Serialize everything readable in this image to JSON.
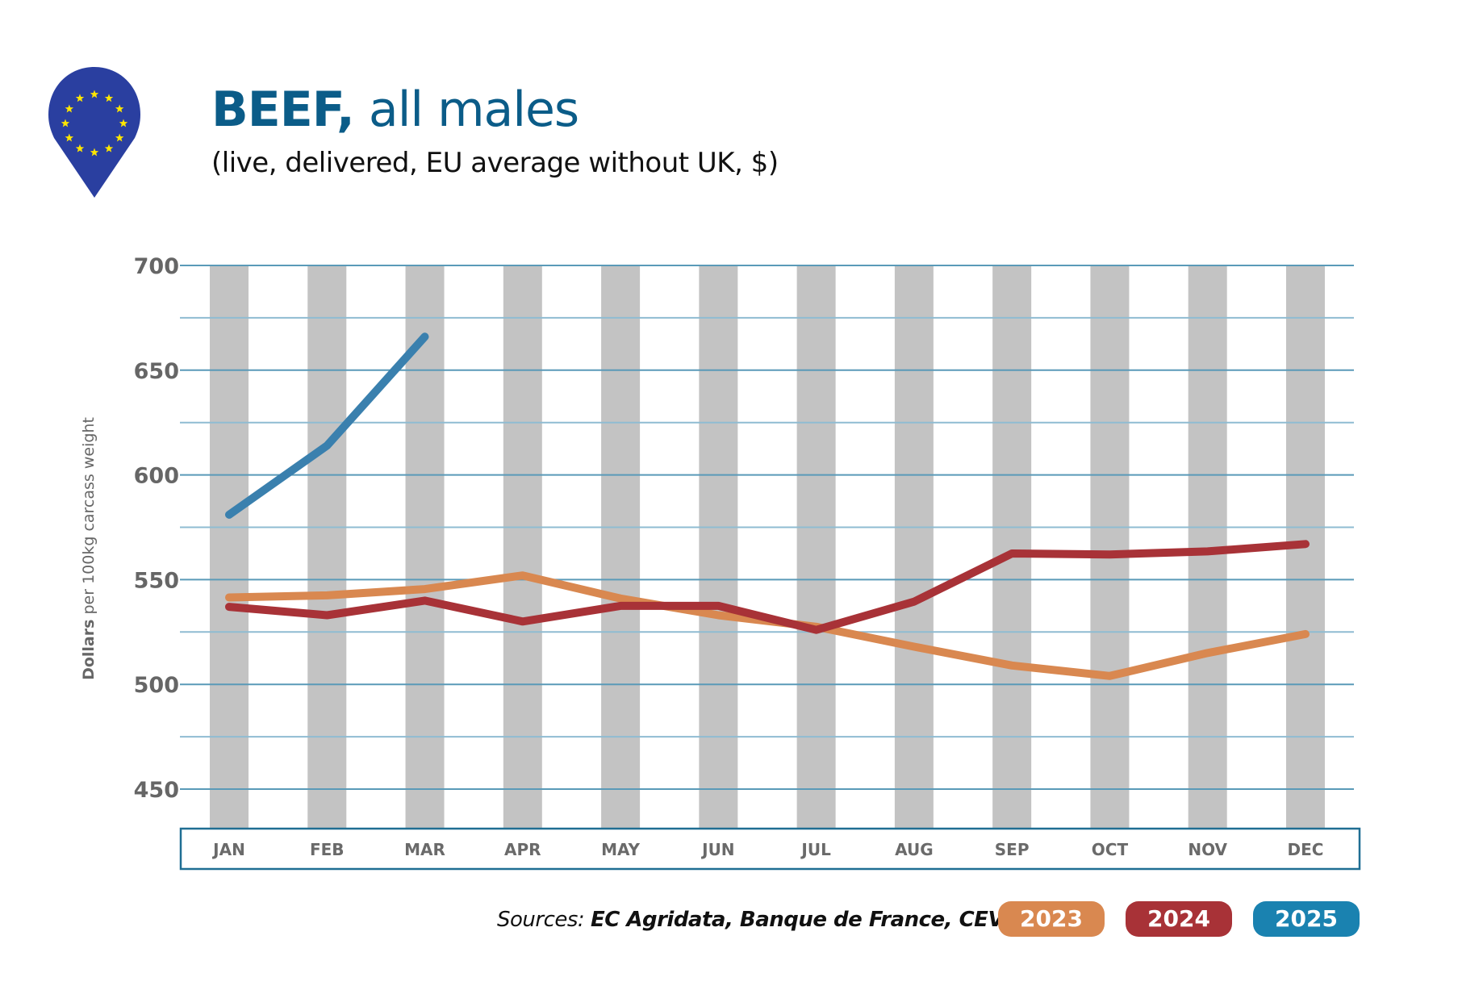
{
  "header": {
    "icon": "eu-flag-map-pin-icon",
    "title_bold": "BEEF,",
    "title_rest": " all males",
    "subtitle": "(live, delivered, EU average without UK, $)"
  },
  "colors": {
    "title": "#0B5C88",
    "series_2023": "#D98850",
    "series_2024": "#A83237",
    "series_2025": "#3A80AE",
    "pill_2025": "#1A82B0",
    "month_band": "#C3C3C3",
    "grid": "#5A9AB8",
    "axis_box": "#1F6E93",
    "eu_blue": "#2A3FA0",
    "eu_star": "#FFE600"
  },
  "footer": {
    "sources_label": "Sources: ",
    "sources_names": "EC Agridata, Banque de France, CEVA"
  },
  "legend": [
    {
      "label": "2023",
      "color": "#D98850"
    },
    {
      "label": "2024",
      "color": "#A83237"
    },
    {
      "label": "2025",
      "color": "#1A82B0"
    }
  ],
  "chart_data": {
    "type": "line",
    "title": "BEEF, all males",
    "subtitle": "(live, delivered, EU average without UK, $)",
    "xlabel": "",
    "ylabel_bold": "Dollars",
    "ylabel_rest": " per 100kg carcass weight",
    "categories": [
      "JAN",
      "FEB",
      "MAR",
      "APR",
      "MAY",
      "JUN",
      "JUL",
      "AUG",
      "SEP",
      "OCT",
      "NOV",
      "DEC"
    ],
    "yticks": [
      450,
      500,
      550,
      600,
      650,
      700
    ],
    "minor_gridlines": [
      475,
      525,
      575,
      625,
      675
    ],
    "ylim": [
      431,
      700
    ],
    "grid": true,
    "legend_position": "bottom-right",
    "series": [
      {
        "name": "2023",
        "color": "#D98850",
        "values": [
          541.5,
          542.5,
          545.5,
          552,
          541,
          533,
          527.5,
          518,
          509,
          504,
          515,
          524
        ]
      },
      {
        "name": "2024",
        "color": "#A83237",
        "values": [
          537,
          533,
          540,
          530,
          537.5,
          537.5,
          526,
          539.5,
          562.5,
          562,
          563.5,
          567
        ]
      },
      {
        "name": "2025",
        "color": "#3A80AE",
        "values": [
          581,
          614,
          666
        ]
      }
    ],
    "source": "Sources: EC Agridata, Banque de France, CEVA"
  }
}
